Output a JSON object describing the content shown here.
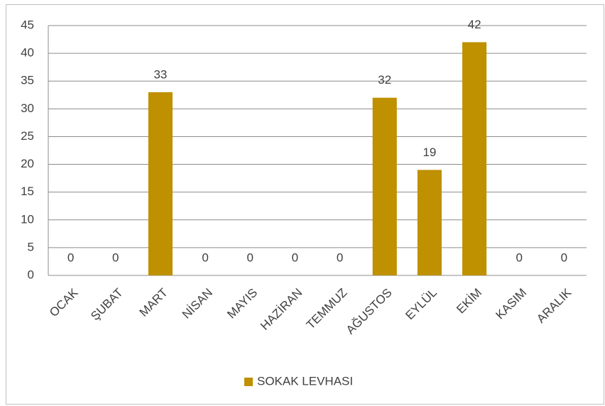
{
  "chart_data": {
    "type": "bar",
    "categories": [
      "OCAK",
      "ŞUBAT",
      "MART",
      "NİSAN",
      "MAYIS",
      "HAZİRAN",
      "TEMMUZ",
      "AĞUSTOS",
      "EYLÜL",
      "EKİM",
      "KASIM",
      "ARALIK"
    ],
    "series": [
      {
        "name": "SOKAK LEVHASI",
        "color": "#bf9000",
        "values": [
          0,
          0,
          33,
          0,
          0,
          0,
          0,
          32,
          19,
          42,
          0,
          0
        ]
      }
    ],
    "ylim": [
      0,
      45
    ],
    "yticks": [
      0,
      5,
      10,
      15,
      20,
      25,
      30,
      35,
      40,
      45
    ],
    "grid": true,
    "legend": "bottom"
  }
}
